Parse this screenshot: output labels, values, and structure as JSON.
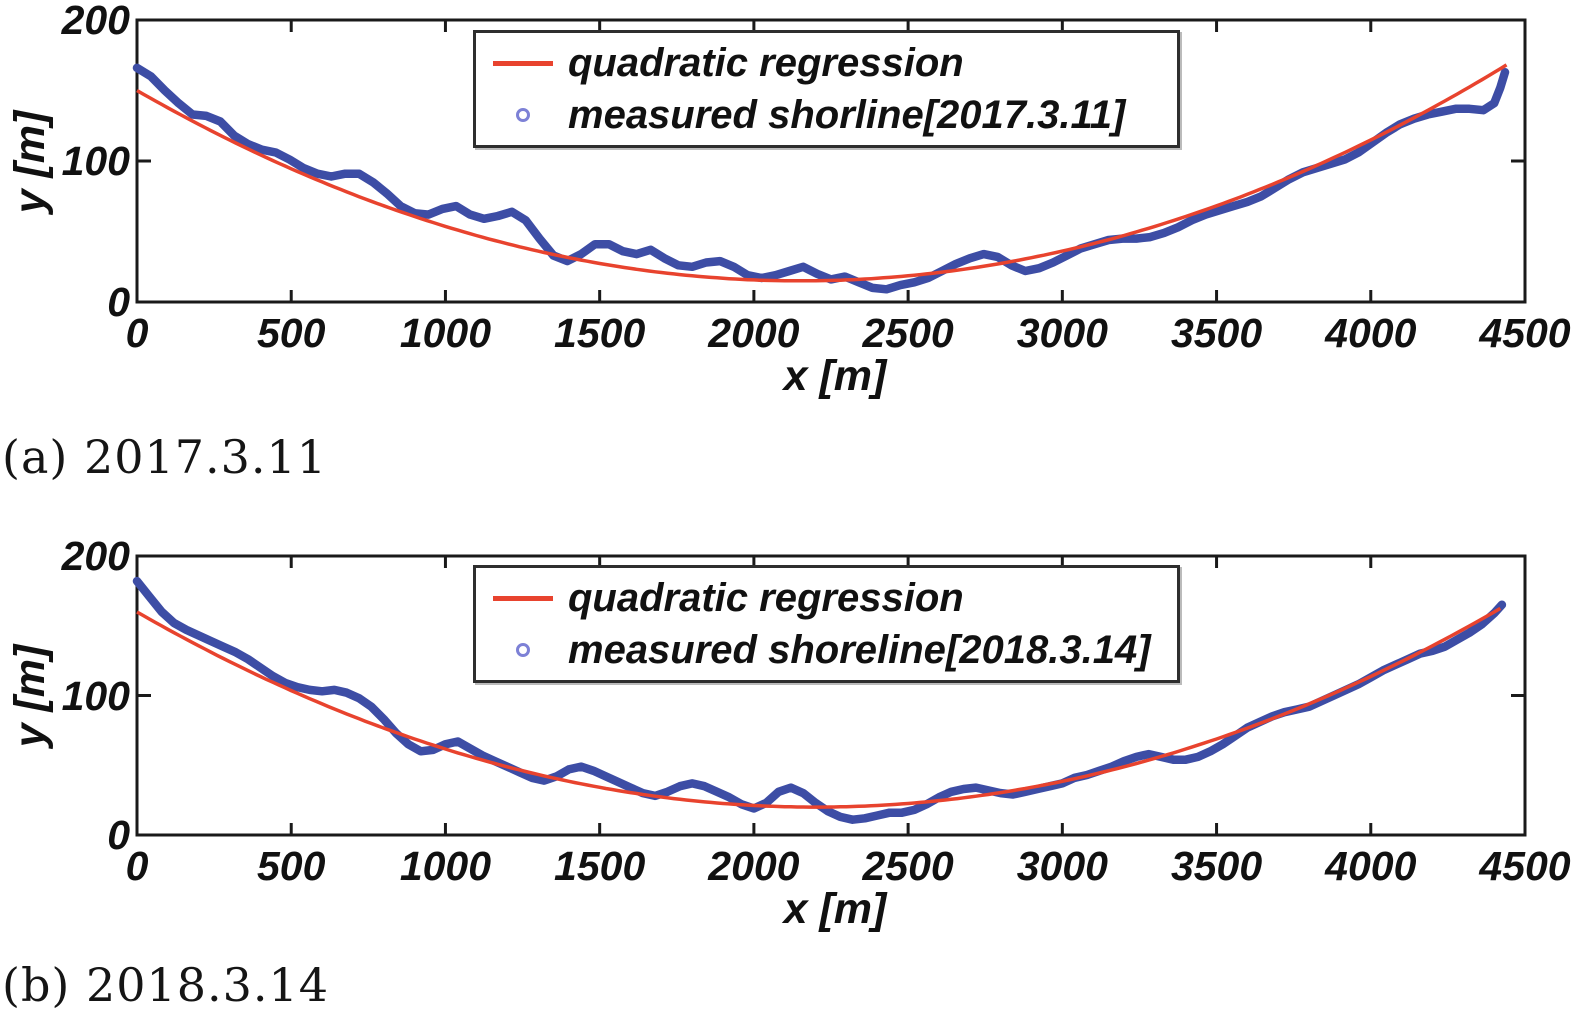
{
  "figure": {
    "background": "#ffffff",
    "axis_color": "#1a1a1a",
    "text_color": "#111111"
  },
  "chart_data": [
    {
      "type": "line",
      "caption": "(a) 2017.3.11",
      "xlabel": "x [m]",
      "ylabel": "y [m]",
      "xlim": [
        0,
        4500
      ],
      "ylim": [
        0,
        200
      ],
      "xticks": [
        0,
        500,
        1000,
        1500,
        2000,
        2500,
        3000,
        3500,
        4000,
        4500
      ],
      "yticks": [
        0,
        100,
        200
      ],
      "grid": false,
      "legend_position": "upper-center-inside",
      "series": [
        {
          "name": "quadratic regression",
          "type": "line",
          "color": "#e8432e",
          "quadratic": {
            "a": 2.92e-05,
            "x_vertex": 2150,
            "y_vertex": 15,
            "x_start": 0,
            "x_end": 4440
          }
        },
        {
          "name": "measured shorline[2017.3.11]",
          "type": "scatter-line",
          "color": "#3d4da5",
          "marker_edge_color": "#7d81d6",
          "points": [
            [
              0,
              166
            ],
            [
              45,
              160
            ],
            [
              90,
              150
            ],
            [
              135,
              141
            ],
            [
              180,
              133
            ],
            [
              225,
              132
            ],
            [
              270,
              128
            ],
            [
              315,
              118
            ],
            [
              360,
              112
            ],
            [
              405,
              108
            ],
            [
              450,
              106
            ],
            [
              495,
              101
            ],
            [
              540,
              95
            ],
            [
              585,
              91
            ],
            [
              630,
              89
            ],
            [
              675,
              91
            ],
            [
              720,
              91
            ],
            [
              765,
              85
            ],
            [
              810,
              77
            ],
            [
              855,
              68
            ],
            [
              900,
              63
            ],
            [
              945,
              62
            ],
            [
              990,
              66
            ],
            [
              1035,
              68
            ],
            [
              1080,
              62
            ],
            [
              1125,
              59
            ],
            [
              1170,
              61
            ],
            [
              1215,
              64
            ],
            [
              1260,
              58
            ],
            [
              1305,
              45
            ],
            [
              1350,
              33
            ],
            [
              1395,
              29
            ],
            [
              1440,
              34
            ],
            [
              1485,
              41
            ],
            [
              1530,
              41
            ],
            [
              1575,
              36
            ],
            [
              1620,
              34
            ],
            [
              1665,
              37
            ],
            [
              1710,
              31
            ],
            [
              1755,
              26
            ],
            [
              1800,
              25
            ],
            [
              1845,
              28
            ],
            [
              1890,
              29
            ],
            [
              1935,
              25
            ],
            [
              1980,
              19
            ],
            [
              2025,
              17
            ],
            [
              2070,
              19
            ],
            [
              2115,
              22
            ],
            [
              2160,
              25
            ],
            [
              2205,
              20
            ],
            [
              2250,
              16
            ],
            [
              2295,
              18
            ],
            [
              2340,
              14
            ],
            [
              2385,
              10
            ],
            [
              2430,
              9
            ],
            [
              2475,
              12
            ],
            [
              2520,
              14
            ],
            [
              2565,
              17
            ],
            [
              2610,
              22
            ],
            [
              2655,
              27
            ],
            [
              2700,
              31
            ],
            [
              2745,
              34
            ],
            [
              2790,
              32
            ],
            [
              2835,
              26
            ],
            [
              2880,
              22
            ],
            [
              2925,
              24
            ],
            [
              2970,
              28
            ],
            [
              3015,
              33
            ],
            [
              3060,
              38
            ],
            [
              3105,
              41
            ],
            [
              3150,
              44
            ],
            [
              3195,
              45
            ],
            [
              3240,
              45
            ],
            [
              3285,
              46
            ],
            [
              3330,
              49
            ],
            [
              3375,
              53
            ],
            [
              3420,
              58
            ],
            [
              3465,
              62
            ],
            [
              3510,
              65
            ],
            [
              3555,
              68
            ],
            [
              3600,
              71
            ],
            [
              3645,
              75
            ],
            [
              3690,
              81
            ],
            [
              3735,
              87
            ],
            [
              3780,
              92
            ],
            [
              3825,
              95
            ],
            [
              3870,
              98
            ],
            [
              3915,
              101
            ],
            [
              3960,
              106
            ],
            [
              4005,
              113
            ],
            [
              4050,
              120
            ],
            [
              4095,
              126
            ],
            [
              4140,
              130
            ],
            [
              4185,
              133
            ],
            [
              4230,
              135
            ],
            [
              4275,
              137
            ],
            [
              4320,
              137
            ],
            [
              4365,
              136
            ],
            [
              4400,
              141
            ],
            [
              4420,
              152
            ],
            [
              4435,
              163
            ]
          ]
        }
      ]
    },
    {
      "type": "line",
      "caption": "(b) 2018.3.14",
      "xlabel": "x [m]",
      "ylabel": "y [m]",
      "xlim": [
        0,
        4500
      ],
      "ylim": [
        0,
        200
      ],
      "xticks": [
        0,
        500,
        1000,
        1500,
        2000,
        2500,
        3000,
        3500,
        4000,
        4500
      ],
      "yticks": [
        0,
        100,
        200
      ],
      "grid": false,
      "legend_position": "upper-center-inside",
      "series": [
        {
          "name": "quadratic regression",
          "type": "line",
          "color": "#e8432e",
          "quadratic": {
            "a": 2.89e-05,
            "x_vertex": 2200,
            "y_vertex": 20,
            "x_start": 0,
            "x_end": 4430
          }
        },
        {
          "name": "measured shoreline[2018.3.14]",
          "type": "scatter-line",
          "color": "#3d4da5",
          "marker_edge_color": "#7d81d6",
          "points": [
            [
              0,
              182
            ],
            [
              40,
              171
            ],
            [
              80,
              160
            ],
            [
              120,
              152
            ],
            [
              160,
              147
            ],
            [
              200,
              143
            ],
            [
              240,
              139
            ],
            [
              280,
              135
            ],
            [
              320,
              131
            ],
            [
              360,
              126
            ],
            [
              400,
              120
            ],
            [
              440,
              114
            ],
            [
              480,
              109
            ],
            [
              520,
              106
            ],
            [
              560,
              104
            ],
            [
              600,
              103
            ],
            [
              640,
              104
            ],
            [
              680,
              102
            ],
            [
              720,
              98
            ],
            [
              760,
              92
            ],
            [
              800,
              83
            ],
            [
              840,
              73
            ],
            [
              880,
              65
            ],
            [
              920,
              60
            ],
            [
              960,
              61
            ],
            [
              1000,
              65
            ],
            [
              1040,
              67
            ],
            [
              1080,
              62
            ],
            [
              1120,
              57
            ],
            [
              1160,
              53
            ],
            [
              1200,
              49
            ],
            [
              1240,
              45
            ],
            [
              1280,
              41
            ],
            [
              1320,
              39
            ],
            [
              1360,
              42
            ],
            [
              1400,
              47
            ],
            [
              1440,
              49
            ],
            [
              1480,
              46
            ],
            [
              1520,
              42
            ],
            [
              1560,
              38
            ],
            [
              1600,
              34
            ],
            [
              1640,
              30
            ],
            [
              1680,
              28
            ],
            [
              1720,
              31
            ],
            [
              1760,
              35
            ],
            [
              1800,
              37
            ],
            [
              1840,
              35
            ],
            [
              1880,
              31
            ],
            [
              1920,
              27
            ],
            [
              1960,
              22
            ],
            [
              2000,
              19
            ],
            [
              2040,
              23
            ],
            [
              2080,
              31
            ],
            [
              2120,
              34
            ],
            [
              2160,
              30
            ],
            [
              2200,
              23
            ],
            [
              2240,
              17
            ],
            [
              2280,
              13
            ],
            [
              2320,
              11
            ],
            [
              2360,
              12
            ],
            [
              2400,
              14
            ],
            [
              2440,
              16
            ],
            [
              2480,
              16
            ],
            [
              2520,
              18
            ],
            [
              2560,
              22
            ],
            [
              2600,
              27
            ],
            [
              2640,
              31
            ],
            [
              2680,
              33
            ],
            [
              2720,
              34
            ],
            [
              2760,
              32
            ],
            [
              2800,
              30
            ],
            [
              2840,
              29
            ],
            [
              2880,
              31
            ],
            [
              2920,
              33
            ],
            [
              2960,
              35
            ],
            [
              3000,
              37
            ],
            [
              3040,
              41
            ],
            [
              3080,
              43
            ],
            [
              3120,
              46
            ],
            [
              3160,
              49
            ],
            [
              3200,
              53
            ],
            [
              3240,
              56
            ],
            [
              3280,
              58
            ],
            [
              3320,
              56
            ],
            [
              3360,
              54
            ],
            [
              3400,
              54
            ],
            [
              3440,
              56
            ],
            [
              3480,
              60
            ],
            [
              3520,
              65
            ],
            [
              3560,
              71
            ],
            [
              3600,
              77
            ],
            [
              3640,
              81
            ],
            [
              3680,
              85
            ],
            [
              3720,
              88
            ],
            [
              3760,
              90
            ],
            [
              3800,
              92
            ],
            [
              3840,
              96
            ],
            [
              3880,
              100
            ],
            [
              3920,
              104
            ],
            [
              3960,
              108
            ],
            [
              4000,
              113
            ],
            [
              4040,
              118
            ],
            [
              4080,
              122
            ],
            [
              4120,
              126
            ],
            [
              4160,
              130
            ],
            [
              4200,
              132
            ],
            [
              4240,
              135
            ],
            [
              4280,
              140
            ],
            [
              4320,
              145
            ],
            [
              4360,
              151
            ],
            [
              4400,
              159
            ],
            [
              4425,
              165
            ]
          ]
        }
      ]
    }
  ]
}
